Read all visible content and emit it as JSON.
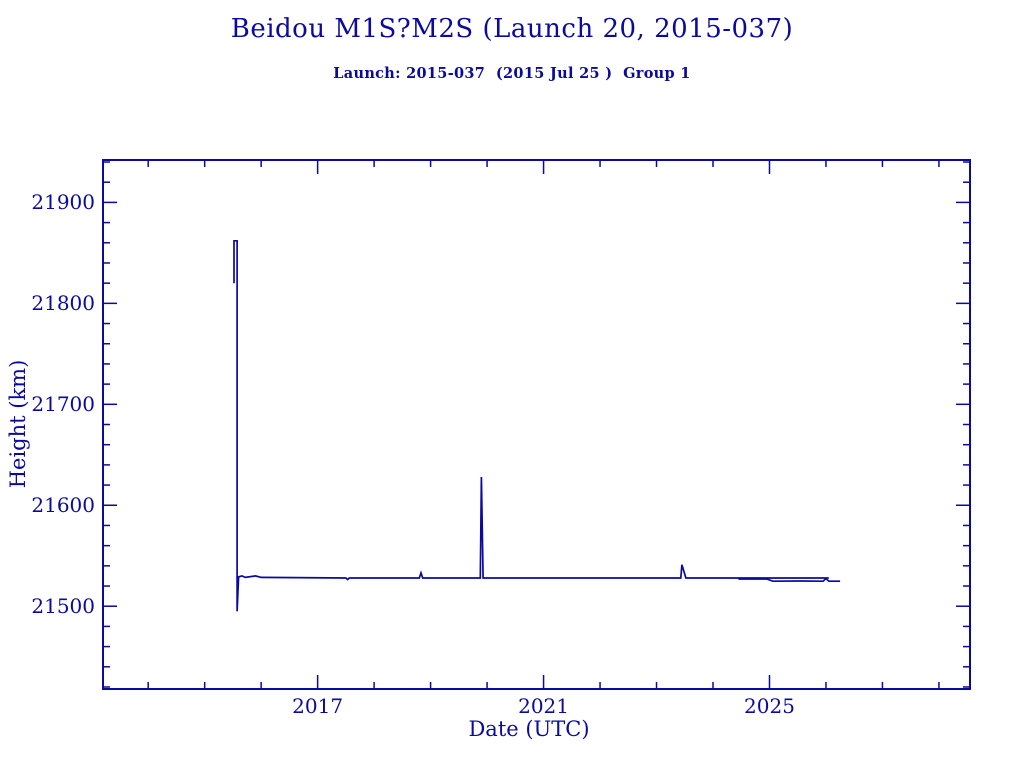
{
  "page": {
    "background": "#ffffff",
    "ink_color": "#0a0a9e"
  },
  "chart_data": {
    "type": "line",
    "title": "Beidou M1S?M2S (Launch 20, 2015-037)",
    "subtitle": "Launch: 2015-037  (2015 Jul 25 )  Group 1",
    "xlabel": "Date (UTC)",
    "ylabel": "Height (km)",
    "xlim": [
      2013.2,
      2028.55
    ],
    "ylim": [
      21418,
      21942
    ],
    "x_major_ticks": [
      2017,
      2021,
      2025
    ],
    "x_tick_labels": [
      "2017",
      "2021",
      "2025"
    ],
    "x_minor_step": 1,
    "y_major_ticks": [
      21500,
      21600,
      21700,
      21800,
      21900
    ],
    "y_tick_labels": [
      "21500",
      "21600",
      "21700",
      "21800",
      "21900"
    ],
    "y_minor_step": 20,
    "grid": false,
    "legend": "none",
    "line_color": "#0a0a9e",
    "series": [
      {
        "name": "satellite-track-main",
        "points": [
          [
            2015.52,
            21820
          ],
          [
            2015.52,
            21862
          ],
          [
            2015.575,
            21862
          ],
          [
            2015.575,
            21495
          ],
          [
            2015.6,
            21529
          ],
          [
            2015.66,
            21530
          ],
          [
            2015.72,
            21528.5
          ],
          [
            2015.9,
            21530
          ],
          [
            2016.0,
            21528.5
          ],
          [
            2017.5,
            21528
          ],
          [
            2017.53,
            21526.5
          ],
          [
            2017.56,
            21528
          ],
          [
            2018.8,
            21528
          ],
          [
            2018.83,
            21533
          ],
          [
            2018.86,
            21528
          ],
          [
            2019.88,
            21528
          ],
          [
            2019.9,
            21628
          ],
          [
            2019.93,
            21528
          ],
          [
            2023.43,
            21528
          ],
          [
            2023.45,
            21541
          ],
          [
            2023.52,
            21528
          ],
          [
            2025.9,
            21528
          ],
          [
            2026.05,
            21528
          ]
        ]
      },
      {
        "name": "satellite-track-second",
        "points": [
          [
            2024.45,
            21527
          ],
          [
            2024.95,
            21527
          ],
          [
            2025.06,
            21524.8
          ],
          [
            2025.55,
            21525
          ],
          [
            2025.95,
            21524.8
          ],
          [
            2026.0,
            21527.5
          ],
          [
            2026.05,
            21524.8
          ],
          [
            2026.25,
            21524.8
          ]
        ]
      }
    ]
  }
}
